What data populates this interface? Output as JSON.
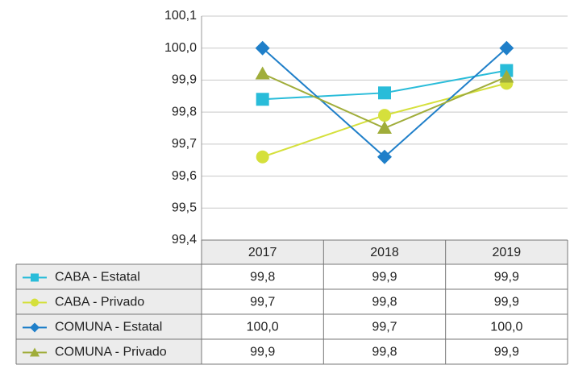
{
  "chart_data": {
    "type": "line",
    "categories": [
      "2017",
      "2018",
      "2019"
    ],
    "series": [
      {
        "name": "CABA - Estatal",
        "color": "#29bcd9",
        "marker": "square",
        "values": [
          99.84,
          99.86,
          99.93
        ],
        "value_labels": [
          "99,8",
          "99,9",
          "99,9"
        ]
      },
      {
        "name": "CABA - Privado",
        "color": "#d5e03c",
        "marker": "circle",
        "values": [
          99.66,
          99.79,
          99.89
        ],
        "value_labels": [
          "99,7",
          "99,8",
          "99,9"
        ]
      },
      {
        "name": "COMUNA - Estatal",
        "color": "#1f7fc9",
        "marker": "diamond",
        "values": [
          100.0,
          99.66,
          100.0
        ],
        "value_labels": [
          "100,0",
          "99,7",
          "100,0"
        ]
      },
      {
        "name": "COMUNA - Privado",
        "color": "#a0ad3a",
        "marker": "triangle",
        "values": [
          99.92,
          99.75,
          99.91
        ],
        "value_labels": [
          "99,9",
          "99,8",
          "99,9"
        ]
      }
    ],
    "ylim": [
      99.4,
      100.1
    ],
    "yticks": [
      {
        "value": 99.4,
        "label": "99,4"
      },
      {
        "value": 99.5,
        "label": "99,5"
      },
      {
        "value": 99.6,
        "label": "99,6"
      },
      {
        "value": 99.7,
        "label": "99,7"
      },
      {
        "value": 99.8,
        "label": "99,8"
      },
      {
        "value": 99.9,
        "label": "99,9"
      },
      {
        "value": 100.0,
        "label": "100,0"
      },
      {
        "value": 100.1,
        "label": "100,1"
      }
    ],
    "grid": true
  }
}
